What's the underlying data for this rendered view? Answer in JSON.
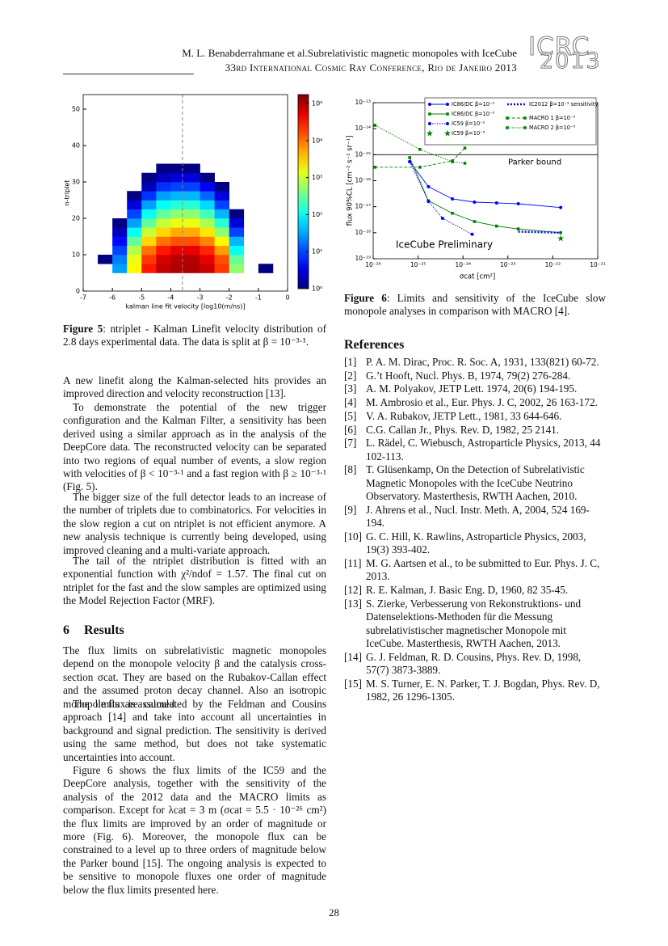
{
  "header": {
    "authors_title": "M. L. Benabderrahmane et al.Subrelativistic magnetic monopoles with IceCube",
    "conference": "33rd International Cosmic Ray Conference, Rio de Janeiro 2013",
    "logo_top": "ICRC",
    "logo_bottom": "2013"
  },
  "chart_data": [
    {
      "type": "heatmap",
      "xlabel": "kalman line fit velocity [log10(m/ns)]",
      "ylabel": "n-triplet",
      "xlim": [
        -7,
        0
      ],
      "ylim": [
        0,
        54
      ],
      "xticks": [
        -7,
        -6,
        -5,
        -4,
        -3,
        -2,
        -1,
        0
      ],
      "yticks": [
        0,
        10,
        20,
        30,
        40,
        50
      ],
      "log_color": true,
      "clim": [
        1,
        175000
      ],
      "cticks": [
        {
          "value": 1,
          "label": "10⁰"
        },
        {
          "value": 10,
          "label": "10¹"
        },
        {
          "value": 100,
          "label": "10²"
        },
        {
          "value": 1000,
          "label": "10³"
        },
        {
          "value": 10000,
          "label": "10⁴"
        },
        {
          "value": 100000,
          "label": "10⁵"
        }
      ],
      "split_x": -3.6,
      "x_bins": [
        -6.5,
        -6,
        -5.5,
        -5,
        -4.5,
        -4,
        -3.5,
        -3,
        -2.5,
        -2,
        -1.5,
        -1,
        -0.5
      ],
      "y_bins": [
        5,
        7.5,
        10,
        12.5,
        15,
        17.5,
        20,
        22.5,
        25,
        27.5,
        30,
        32.5,
        35
      ],
      "z": [
        [
          null,
          30,
          2000,
          30000,
          80000,
          100000,
          100000,
          70000,
          20000,
          500,
          null,
          1
        ],
        [
          1,
          20,
          1500,
          20000,
          60000,
          90000,
          90000,
          50000,
          15000,
          300,
          null,
          null
        ],
        [
          null,
          10,
          800,
          10000,
          30000,
          50000,
          50000,
          25000,
          6000,
          100,
          null,
          null
        ],
        [
          null,
          5,
          300,
          3000,
          10000,
          15000,
          15000,
          8000,
          2000,
          40,
          null,
          null
        ],
        [
          null,
          2,
          100,
          1000,
          3000,
          5000,
          5000,
          2500,
          500,
          10,
          null,
          null
        ],
        [
          null,
          1,
          30,
          300,
          1000,
          1500,
          1500,
          700,
          150,
          3,
          null,
          null
        ],
        [
          null,
          null,
          10,
          100,
          300,
          500,
          500,
          200,
          40,
          1,
          null,
          null
        ],
        [
          null,
          null,
          3,
          30,
          100,
          150,
          150,
          60,
          10,
          null,
          null,
          null
        ],
        [
          null,
          null,
          1,
          8,
          30,
          40,
          40,
          15,
          3,
          null,
          null,
          null
        ],
        [
          null,
          null,
          null,
          2,
          8,
          10,
          10,
          4,
          1,
          null,
          null,
          null
        ],
        [
          null,
          null,
          null,
          1,
          2,
          3,
          3,
          1,
          null,
          null,
          null,
          null
        ],
        [
          null,
          null,
          null,
          null,
          1,
          1,
          1,
          null,
          null,
          null,
          null,
          null
        ]
      ]
    },
    {
      "type": "line",
      "xlabel": "σcat [cm²]",
      "ylabel": "flux 90%CL [cm⁻² s⁻¹ sr⁻¹]",
      "log_x": true,
      "log_y": true,
      "xlim": [
        1e-26,
        1e-21
      ],
      "ylim": [
        1e-19,
        1e-13
      ],
      "xticks": [
        {
          "value": 1e-26,
          "label": "10⁻²⁶"
        },
        {
          "value": 1e-25,
          "label": "10⁻²⁵"
        },
        {
          "value": 1e-24,
          "label": "10⁻²⁴"
        },
        {
          "value": 1e-23,
          "label": "10⁻²³"
        },
        {
          "value": 1e-22,
          "label": "10⁻²²"
        },
        {
          "value": 1e-21,
          "label": "10⁻²¹"
        }
      ],
      "yticks": [
        {
          "value": 1e-19,
          "label": "10⁻¹⁹"
        },
        {
          "value": 1e-18,
          "label": "10⁻¹⁸"
        },
        {
          "value": 1e-17,
          "label": "10⁻¹⁷"
        },
        {
          "value": 1e-16,
          "label": "10⁻¹⁶"
        },
        {
          "value": 1e-15,
          "label": "10⁻¹⁵"
        },
        {
          "value": 1e-14,
          "label": "10⁻¹⁴"
        },
        {
          "value": 1e-13,
          "label": "10⁻¹³"
        }
      ],
      "parker_bound": {
        "value": 1e-15,
        "label": "Parker bound"
      },
      "annotation": "IceCube Preliminary",
      "series": [
        {
          "name": "IC86/DC β=10⁻²",
          "color": "#0000ff",
          "marker": "circle",
          "dash": "solid",
          "x": [
            6.5e-26,
            1.7e-25,
            5.8e-25,
            1.8e-24,
            5.6e-24,
            1.7e-23,
            1.5e-22
          ],
          "values": [
            5.4e-16,
            5.9e-17,
            2e-17,
            1.5e-17,
            1.4e-17,
            1.3e-17,
            9.3e-18
          ]
        },
        {
          "name": "IC86/DC β=10⁻³",
          "color": "#008000",
          "marker": "square",
          "dash": "solid",
          "x": [
            6.5e-26,
            1.7e-25,
            5.8e-25,
            1.8e-24,
            5.6e-24,
            1.7e-23,
            1.5e-22
          ],
          "values": [
            7.7e-16,
            1.7e-17,
            5.6e-18,
            2.7e-18,
            1.8e-18,
            1.4e-18,
            1e-18
          ]
        },
        {
          "name": "IC59 β=10⁻²",
          "color": "#0000ff",
          "marker": "circle",
          "dash": "dotted",
          "x": [
            6.5e-26,
            1.7e-25,
            3.5e-25,
            1.6e-24
          ],
          "values": [
            5.4e-16,
            1.6e-17,
            3.6e-18,
            8.7e-19
          ]
        },
        {
          "name": "IC59 β=10⁻³",
          "color": "#008000",
          "marker": "star",
          "dash": "none",
          "x": [
            1.5e-22
          ],
          "values": [
            6e-19
          ]
        },
        {
          "name": "IC2012 β=10⁻² sensitivity",
          "color": "#0000ff",
          "marker": "none",
          "dash": "thick-dotted",
          "x": [
            1.7e-23,
            1.5e-22
          ],
          "values": [
            1.1e-18,
            1e-18
          ]
        },
        {
          "name": "MACRO 1 β=10⁻³",
          "color": "#008000",
          "marker": "square",
          "dash": "dashed",
          "x": [
            1.1e-26,
            1.1e-25,
            5.8e-25,
            1.1e-24
          ],
          "values": [
            3.3e-16,
            3.3e-16,
            5.8e-16,
            1.8e-15
          ]
        },
        {
          "name": "MACRO 2 β=10⁻³",
          "color": "#008000",
          "marker": "square",
          "dash": "dotted",
          "x": [
            1.1e-26,
            1.1e-25,
            5.8e-25,
            1.1e-24
          ],
          "values": [
            1.35e-14,
            1.6e-15,
            5.4e-16,
            4.7e-16
          ]
        }
      ]
    }
  ],
  "captions": [
    {
      "label": "Figure 5",
      "text": ": ntriplet - Kalman Linefit velocity distribution of 2.8 days experimental data. The data is split at β = 10⁻³·¹."
    },
    {
      "label": "Figure 6",
      "text": ": Limits and sensitivity of the IceCube slow monopole analyses in comparison with MACRO [4]."
    }
  ],
  "body": [
    "A new linefit along the Kalman-selected hits provides an improved direction and velocity reconstruction [13].",
    "To demonstrate the potential of the new trigger configuration and the Kalman Filter, a sensitivity has been derived using a similar approach as in the analysis of the DeepCore data. The reconstructed velocity can be separated into two regions of equal number of events, a slow region with velocities of β < 10⁻³·¹ and a fast region with β ≥ 10⁻³·¹ (Fig. 5).",
    "The bigger size of the full detector leads to an increase of the number of triplets due to combinatorics. For velocities in the slow region a cut on ntriplet is not efficient anymore. A new analysis technique is currently being developed, using improved cleaning and a multi-variate approach.",
    "The tail of the ntriplet distribution is fitted with an exponential function with χ²/ndof = 1.57. The final cut on ntriplet for the fast and the slow samples are optimized using the Model Rejection Factor (MRF).",
    "The flux limits on subrelativistic magnetic monopoles depend on the monopole velocity β and the catalysis cross-section σcat. They are based on the Rubakov-Callan effect and the assumed proton decay channel. Also an isotropic monopole flux is assumed.",
    "The limits are calculated by the Feldman and Cousins approach [14] and take into account all uncertainties in background and signal prediction. The sensitivity is derived using the same method, but does not take systematic uncertainties into account.",
    "Figure 6 shows the flux limits of the IC59 and the DeepCore analysis, together with the sensitivity of the analysis of the 2012 data and the MACRO limits as comparison. Except for λcat = 3 m (σcat = 5.5 · 10⁻²⁶ cm²) the flux limits are improved by an order of magnitude or more (Fig. 6). Moreover, the monopole flux can be constrained to a level up to three orders of magnitude below the Parker bound [15]. The ongoing analysis is expected to be sensitive to monopole fluxes one order of magnitude below the flux limits presented here."
  ],
  "section": {
    "number": "6",
    "title": "Results"
  },
  "references": {
    "title": "References",
    "items": [
      {
        "num": "[1]",
        "text": "P. A. M. Dirac, Proc. R. Soc. A, 1931, 133(821) 60-72."
      },
      {
        "num": "[2]",
        "text": "G.’t Hooft, Nucl. Phys. B, 1974, 79(2) 276-284."
      },
      {
        "num": "[3]",
        "text": "A. M. Polyakov, JETP Lett. 1974, 20(6) 194-195."
      },
      {
        "num": "[4]",
        "text": "M. Ambrosio et al., Eur. Phys. J. C, 2002, 26 163-172."
      },
      {
        "num": "[5]",
        "text": "V. A. Rubakov, JETP Lett., 1981, 33 644-646."
      },
      {
        "num": "[6]",
        "text": "C.G. Callan Jr., Phys. Rev. D, 1982, 25 2141."
      },
      {
        "num": "[7]",
        "text": "L. Rädel, C. Wiebusch, Astroparticle Physics, 2013, 44 102-113."
      },
      {
        "num": "[8]",
        "text": "T. Glüsenkamp, On the Detection of Subrelativistic Magnetic Monopoles with the IceCube Neutrino Observatory. Masterthesis, RWTH Aachen, 2010."
      },
      {
        "num": "[9]",
        "text": "J. Ahrens et al., Nucl. Instr. Meth. A, 2004, 524 169-194."
      },
      {
        "num": "[10]",
        "text": "G. C. Hill, K. Rawlins, Astroparticle Physics, 2003, 19(3) 393-402."
      },
      {
        "num": "[11]",
        "text": "M. G. Aartsen et al., to be submitted to Eur. Phys. J. C, 2013."
      },
      {
        "num": "[12]",
        "text": "R. E. Kalman, J. Basic Eng. D, 1960, 82 35-45."
      },
      {
        "num": "[13]",
        "text": "S. Zierke, Verbesserung von Rekonstruktions- und Datenselektions-Methoden für die Messung subrelativistischer magnetischer Monopole mit IceCube. Masterthesis, RWTH Aachen, 2013."
      },
      {
        "num": "[14]",
        "text": "G. J. Feldman, R. D. Cousins, Phys. Rev. D, 1998, 57(7) 3873-3889."
      },
      {
        "num": "[15]",
        "text": "M. S. Turner, E. N. Parker, T. J. Bogdan, Phys. Rev. D, 1982, 26 1296-1305."
      }
    ]
  },
  "page_number": "28"
}
